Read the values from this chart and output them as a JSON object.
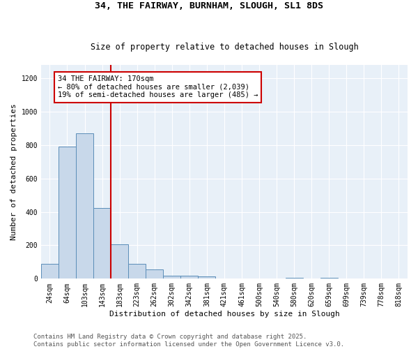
{
  "title_line1": "34, THE FAIRWAY, BURNHAM, SLOUGH, SL1 8DS",
  "title_line2": "Size of property relative to detached houses in Slough",
  "xlabel": "Distribution of detached houses by size in Slough",
  "ylabel": "Number of detached properties",
  "categories": [
    "24sqm",
    "64sqm",
    "103sqm",
    "143sqm",
    "183sqm",
    "223sqm",
    "262sqm",
    "302sqm",
    "342sqm",
    "381sqm",
    "421sqm",
    "461sqm",
    "500sqm",
    "540sqm",
    "580sqm",
    "620sqm",
    "659sqm",
    "699sqm",
    "739sqm",
    "778sqm",
    "818sqm"
  ],
  "values": [
    90,
    790,
    870,
    425,
    205,
    90,
    55,
    20,
    20,
    12,
    0,
    0,
    0,
    0,
    5,
    0,
    5,
    0,
    0,
    0,
    0
  ],
  "bar_color": "#c8d8ea",
  "bar_edge_color": "#5b8db8",
  "vline_color": "#cc0000",
  "annotation_text": "34 THE FAIRWAY: 170sqm\n← 80% of detached houses are smaller (2,039)\n19% of semi-detached houses are larger (485) →",
  "annotation_box_color": "#cc0000",
  "annotation_bg": "#ffffff",
  "ylim": [
    0,
    1280
  ],
  "yticks": [
    0,
    200,
    400,
    600,
    800,
    1000,
    1200
  ],
  "background_color": "#e8f0f8",
  "grid_color": "#ffffff",
  "footer_line1": "Contains HM Land Registry data © Crown copyright and database right 2025.",
  "footer_line2": "Contains public sector information licensed under the Open Government Licence v3.0.",
  "title_fontsize": 9.5,
  "subtitle_fontsize": 8.5,
  "axis_label_fontsize": 8,
  "tick_fontsize": 7,
  "annotation_fontsize": 7.5,
  "footer_fontsize": 6.5
}
